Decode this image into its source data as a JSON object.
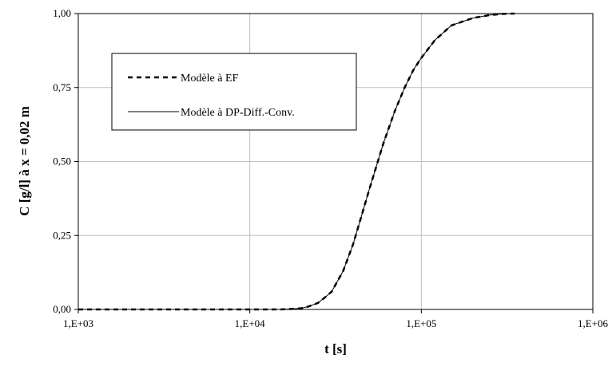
{
  "chart_data": {
    "type": "line",
    "xlabel": "t [s]",
    "ylabel": "C [g/l] à x = 0,02 m",
    "x_scale": "log",
    "xlim": [
      1000,
      1000000
    ],
    "ylim": [
      0,
      1
    ],
    "x_ticks": [
      {
        "value": 1000,
        "label": "1,E+03"
      },
      {
        "value": 10000,
        "label": "1,E+04"
      },
      {
        "value": 100000,
        "label": "1,E+05"
      },
      {
        "value": 1000000,
        "label": "1,E+06"
      }
    ],
    "y_ticks": [
      {
        "value": 0,
        "label": "0,00"
      },
      {
        "value": 0.25,
        "label": "0,25"
      },
      {
        "value": 0.5,
        "label": "0,50"
      },
      {
        "value": 0.75,
        "label": "0,75"
      },
      {
        "value": 1,
        "label": "1,00"
      }
    ],
    "grid": true,
    "legend_position": "upper-left",
    "series": [
      {
        "name": "Modèle à EF",
        "style": "dashed",
        "color": "#000000",
        "x": [
          1000,
          2000,
          5000,
          10000,
          15000,
          18000,
          20000,
          22000,
          25000,
          28000,
          30000,
          35000,
          40000,
          45000,
          50000,
          60000,
          70000,
          80000,
          90000,
          100000,
          120000,
          150000,
          200000,
          250000,
          300000,
          350000
        ],
        "y": [
          0,
          0,
          0,
          0,
          0,
          0.002,
          0.004,
          0.01,
          0.022,
          0.045,
          0.06,
          0.13,
          0.22,
          0.32,
          0.41,
          0.56,
          0.67,
          0.75,
          0.81,
          0.85,
          0.91,
          0.96,
          0.985,
          0.995,
          0.999,
          1.0
        ]
      },
      {
        "name": "Modèle à DP-Diff.-Conv.",
        "style": "solid",
        "color": "#000000",
        "x": [
          1000,
          2000,
          5000,
          10000,
          15000,
          18000,
          20000,
          22000,
          25000,
          28000,
          30000,
          35000,
          40000,
          45000,
          50000,
          60000,
          70000,
          80000,
          90000,
          100000,
          120000,
          150000,
          200000,
          250000,
          300000,
          350000
        ],
        "y": [
          0,
          0,
          0,
          0,
          0,
          0.002,
          0.004,
          0.01,
          0.022,
          0.045,
          0.06,
          0.13,
          0.22,
          0.32,
          0.41,
          0.56,
          0.67,
          0.75,
          0.81,
          0.85,
          0.91,
          0.96,
          0.985,
          0.995,
          0.999,
          1.0
        ]
      }
    ]
  }
}
